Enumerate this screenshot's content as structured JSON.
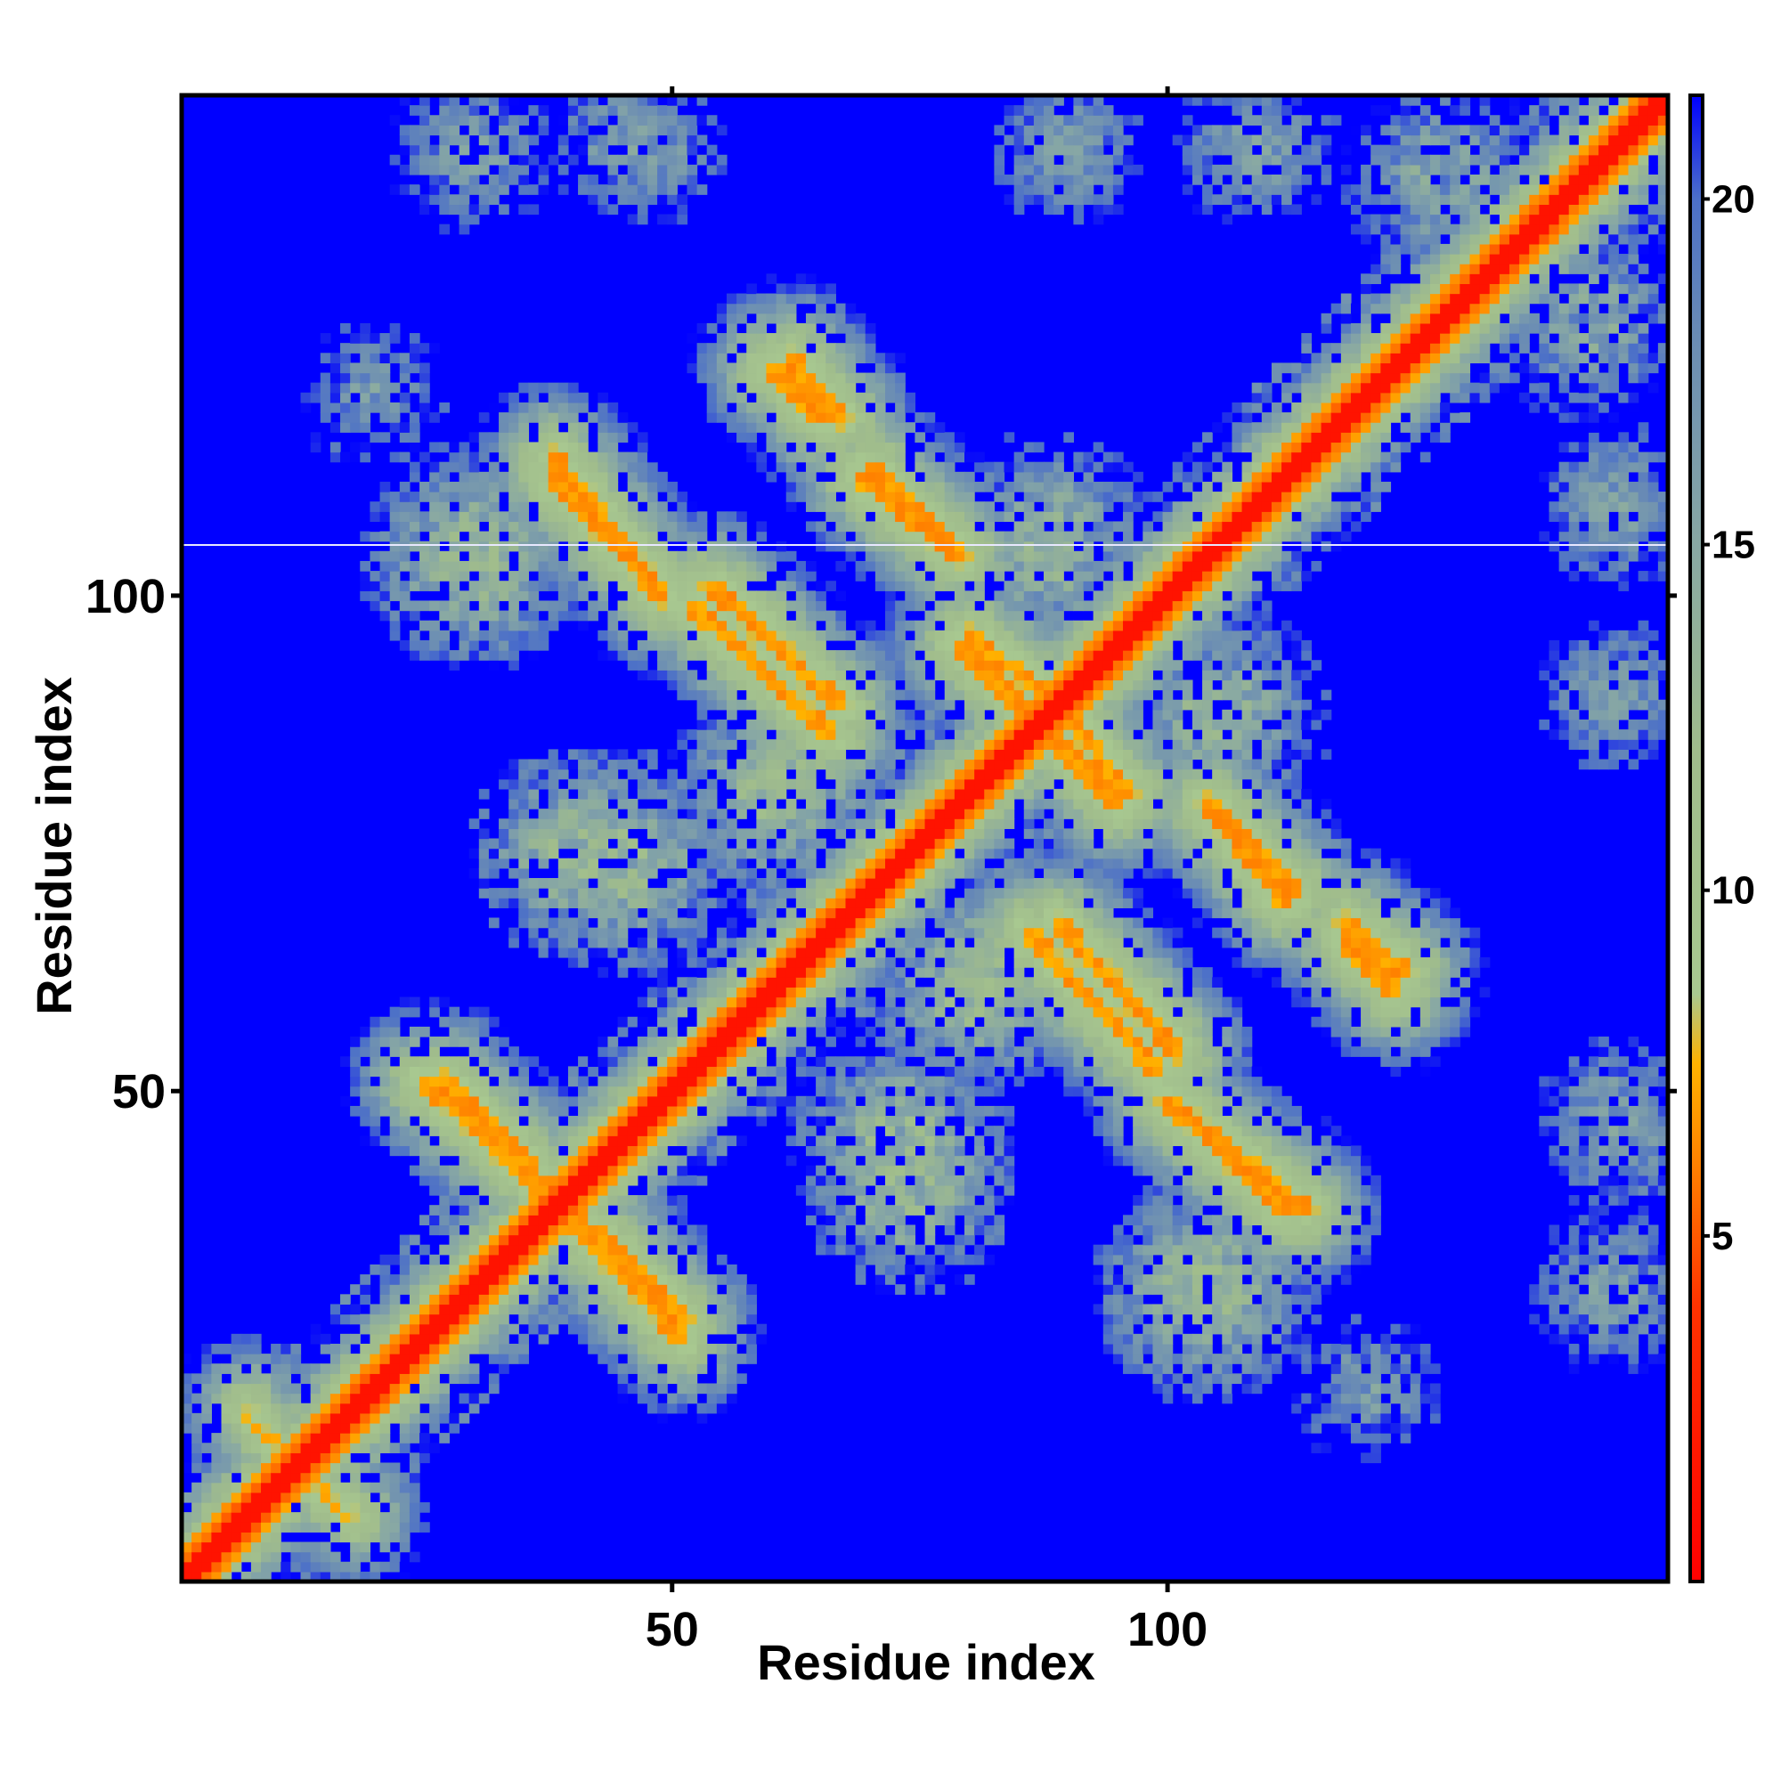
{
  "chart_data": {
    "type": "heatmap",
    "title": "",
    "xlabel": "Residue index",
    "ylabel": "Residue index",
    "xlim": [
      0.5,
      150.5
    ],
    "ylim": [
      0.5,
      150.5
    ],
    "n_residues": 150,
    "x_ticks": [
      {
        "value": 50,
        "label": "50"
      },
      {
        "value": 100,
        "label": "100"
      }
    ],
    "y_ticks": [
      {
        "value": 50,
        "label": "50"
      },
      {
        "value": 100,
        "label": "100"
      }
    ],
    "colorbar": {
      "range": [
        0,
        21.5
      ],
      "ticks": [
        {
          "value": 5,
          "label": "5"
        },
        {
          "value": 10,
          "label": "10"
        },
        {
          "value": 15,
          "label": "15"
        },
        {
          "value": 20,
          "label": "20"
        }
      ],
      "stops": [
        {
          "value": 0,
          "color": "#ff0000"
        },
        {
          "value": 4,
          "color": "#ff3300"
        },
        {
          "value": 6,
          "color": "#ff8000"
        },
        {
          "value": 7.5,
          "color": "#ffb300"
        },
        {
          "value": 8.5,
          "color": "#a8c890"
        },
        {
          "value": 12,
          "color": "#a0bc8c"
        },
        {
          "value": 15,
          "color": "#88a8a4"
        },
        {
          "value": 18,
          "color": "#6a8cb4"
        },
        {
          "value": 20,
          "color": "#4c70c8"
        },
        {
          "value": 21.5,
          "color": "#0000ff"
        }
      ]
    },
    "background_value": 21.5,
    "background_color": "#0000ff",
    "structure": {
      "diagonal_band": {
        "core_halfwidth": 1.2,
        "orange_halfwidth": 3.5,
        "halo_halfwidth": 8.0
      },
      "contact_segments": [
        {
          "residues_x": [
            27,
            36
          ],
          "residues_y": [
            51,
            42
          ],
          "min_distance": 6.0
        },
        {
          "residues_x": [
            39,
            51
          ],
          "residues_y": [
            38,
            25
          ],
          "min_distance": 6.0
        },
        {
          "residues_x": [
            38,
            49
          ],
          "residues_y": [
            112,
            100
          ],
          "min_distance": 6.0
        },
        {
          "residues_x": [
            52,
            66
          ],
          "residues_y": [
            99,
            86
          ],
          "min_distance": 6.0
        },
        {
          "residues_x": [
            60,
            65
          ],
          "residues_y": [
            123,
            118
          ],
          "min_distance": 6.0
        },
        {
          "residues_x": [
            69,
            79
          ],
          "residues_y": [
            112,
            104
          ],
          "min_distance": 6.0
        },
        {
          "residues_x": [
            79,
            86
          ],
          "residues_y": [
            95,
            88
          ],
          "min_distance": 6.0
        },
        {
          "residues_x": [
            90,
            96
          ],
          "residues_y": [
            88,
            80
          ],
          "min_distance": 6.0
        },
        {
          "residues_x": [
            105,
            113
          ],
          "residues_y": [
            78,
            70
          ],
          "min_distance": 6.0
        },
        {
          "residues_x": [
            118,
            124
          ],
          "residues_y": [
            67,
            62
          ],
          "min_distance": 6.0
        },
        {
          "residues_x": [
            89,
            101
          ],
          "residues_y": [
            67,
            54
          ],
          "min_distance": 6.0
        },
        {
          "residues_x": [
            100,
            114
          ],
          "residues_y": [
            49,
            38
          ],
          "min_distance": 6.0
        },
        {
          "residues_x": [
            13,
            18
          ],
          "residues_y": [
            11,
            7
          ],
          "min_distance": 7.0
        }
      ],
      "halo_blobs": [
        {
          "center": [
            30,
            103
          ],
          "radius": 7,
          "min_distance": 11
        },
        {
          "center": [
            40,
            74
          ],
          "radius": 7,
          "min_distance": 11
        },
        {
          "center": [
            60,
            80
          ],
          "radius": 7,
          "min_distance": 11
        },
        {
          "center": [
            73,
            45
          ],
          "radius": 8,
          "min_distance": 11
        },
        {
          "center": [
            82,
            62
          ],
          "radius": 7,
          "min_distance": 11
        },
        {
          "center": [
            104,
            30
          ],
          "radius": 8,
          "min_distance": 11
        },
        {
          "center": [
            88,
            104
          ],
          "radius": 7,
          "min_distance": 12
        },
        {
          "center": [
            106,
            88
          ],
          "radius": 7,
          "min_distance": 12
        },
        {
          "center": [
            128,
            142
          ],
          "radius": 9,
          "min_distance": 13
        },
        {
          "center": [
            145,
            30
          ],
          "radius": 5,
          "min_distance": 14
        },
        {
          "center": [
            145,
            48
          ],
          "radius": 4,
          "min_distance": 14
        },
        {
          "center": [
            145,
            90
          ],
          "radius": 4,
          "min_distance": 14
        },
        {
          "center": [
            145,
            110
          ],
          "radius": 4,
          "min_distance": 14
        },
        {
          "center": [
            30,
            145
          ],
          "radius": 5,
          "min_distance": 14
        },
        {
          "center": [
            45,
            146
          ],
          "radius": 4,
          "min_distance": 14
        },
        {
          "center": [
            90,
            145
          ],
          "radius": 4,
          "min_distance": 14
        },
        {
          "center": [
            108,
            145
          ],
          "radius": 4,
          "min_distance": 14
        },
        {
          "center": [
            120,
            20
          ],
          "radius": 4,
          "min_distance": 14
        },
        {
          "center": [
            15,
            10
          ],
          "radius": 6,
          "min_distance": 12
        }
      ]
    }
  }
}
